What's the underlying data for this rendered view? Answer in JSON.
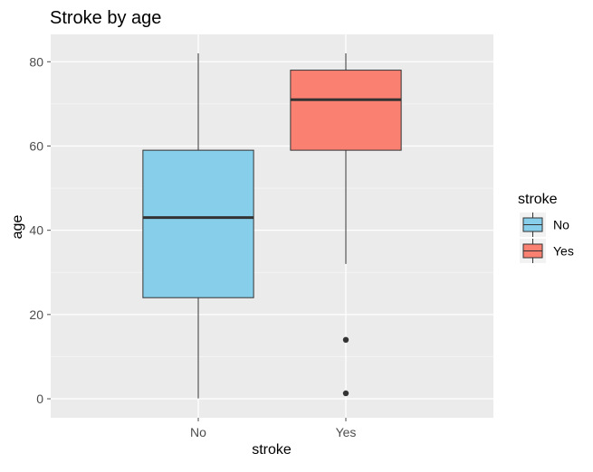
{
  "chart_data": {
    "type": "boxplot",
    "title": "Stroke by age",
    "xlabel": "stroke",
    "ylabel": "age",
    "categories": [
      "No",
      "Yes"
    ],
    "ylim": [
      -4.5,
      86.5
    ],
    "yticks": [
      0,
      20,
      40,
      60,
      80
    ],
    "grid": true,
    "boxes": [
      {
        "category": "No",
        "min": 0.1,
        "q1": 24,
        "median": 43,
        "q3": 59,
        "max": 82,
        "outliers": []
      },
      {
        "category": "Yes",
        "min": 32,
        "q1": 59,
        "median": 71,
        "q3": 78,
        "max": 82,
        "outliers": [
          14,
          1.3
        ]
      }
    ],
    "legend": {
      "title": "stroke",
      "position": "right",
      "entries": [
        "No",
        "Yes"
      ]
    }
  },
  "colors": {
    "panel": "#ebebeb",
    "grid_major": "#ffffff",
    "grid_minor": "#f5f5f5",
    "fill_no": "#87ceeb",
    "fill_yes": "#fa8072",
    "median": "#333333",
    "box_outline": "#333333",
    "whisker": "#333333",
    "outlier": "#333333",
    "tick": "#4d4d4d"
  }
}
